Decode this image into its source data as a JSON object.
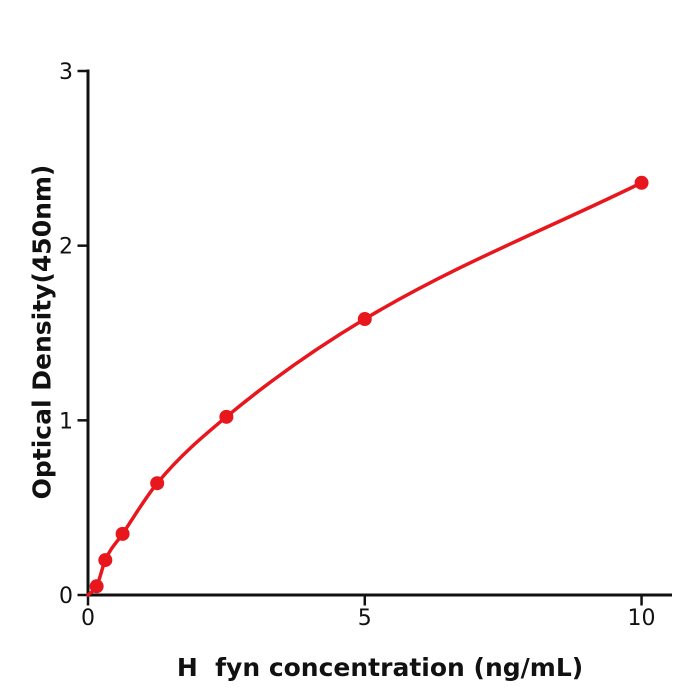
{
  "chart_data": {
    "type": "scatter",
    "title": "",
    "xlabel": "H  fyn concentration (ng/mL)",
    "ylabel": "Optical Density(450nm)",
    "x": [
      0.156,
      0.313,
      0.625,
      1.25,
      2.5,
      5,
      10
    ],
    "y": [
      0.05,
      0.2,
      0.35,
      0.64,
      1.02,
      1.58,
      2.36
    ],
    "fit_curve_through_origin": true,
    "curve_origin": [
      0,
      0
    ],
    "xlim": [
      0,
      10.55
    ],
    "ylim": [
      0,
      3
    ],
    "xticks": [
      0,
      5,
      10
    ],
    "yticks": [
      0,
      1,
      2,
      3
    ],
    "grid": false,
    "legend_position": "none",
    "point_color": "#e8161d",
    "line_color": "#e8161d",
    "axis_color": "#111111",
    "text_color": "#111111",
    "background_color": "#ffffff"
  }
}
